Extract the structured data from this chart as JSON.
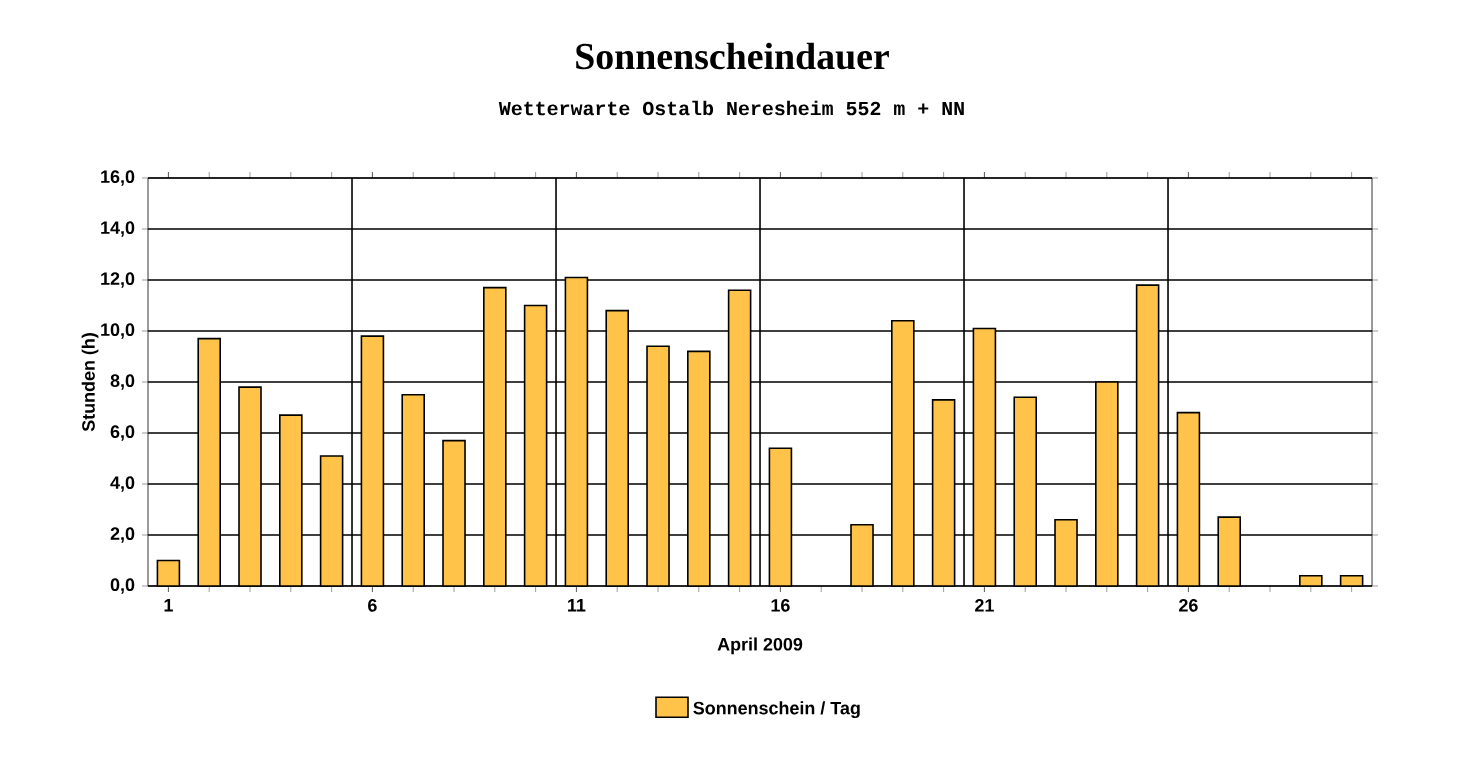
{
  "chart_data": {
    "type": "bar",
    "title": "Sonnenscheindauer",
    "subtitle": "Wetterwarte Ostalb Neresheim 552 m + NN",
    "xlabel": "April 2009",
    "ylabel": "Stunden  (h)",
    "categories": [
      "1",
      null,
      null,
      null,
      null,
      "6",
      null,
      null,
      null,
      null,
      "11",
      null,
      null,
      null,
      null,
      "16",
      null,
      null,
      null,
      null,
      "21",
      null,
      null,
      null,
      null,
      "26",
      null,
      null,
      null,
      null
    ],
    "series": [
      {
        "name": "Sonnenschein / Tag",
        "color": "#ffc34a",
        "values": [
          1.0,
          9.7,
          7.8,
          6.7,
          5.1,
          9.8,
          7.5,
          5.7,
          11.7,
          11.0,
          12.1,
          10.8,
          9.4,
          9.2,
          11.6,
          5.4,
          0,
          2.4,
          10.4,
          7.3,
          10.1,
          7.4,
          2.6,
          8.0,
          11.8,
          6.8,
          2.7,
          0,
          0.4,
          0.4
        ]
      }
    ],
    "ylim": [
      0,
      16
    ],
    "yticks": [
      {
        "value": 0,
        "label": "0,0"
      },
      {
        "value": 2,
        "label": "2,0"
      },
      {
        "value": 4,
        "label": "4,0"
      },
      {
        "value": 6,
        "label": "6,0"
      },
      {
        "value": 8,
        "label": "8,0"
      },
      {
        "value": 10,
        "label": "10,0"
      },
      {
        "value": 12,
        "label": "12,0"
      },
      {
        "value": 14,
        "label": "14,0"
      },
      {
        "value": 16,
        "label": "16,0"
      }
    ],
    "grid": true,
    "legend": "bottom"
  }
}
